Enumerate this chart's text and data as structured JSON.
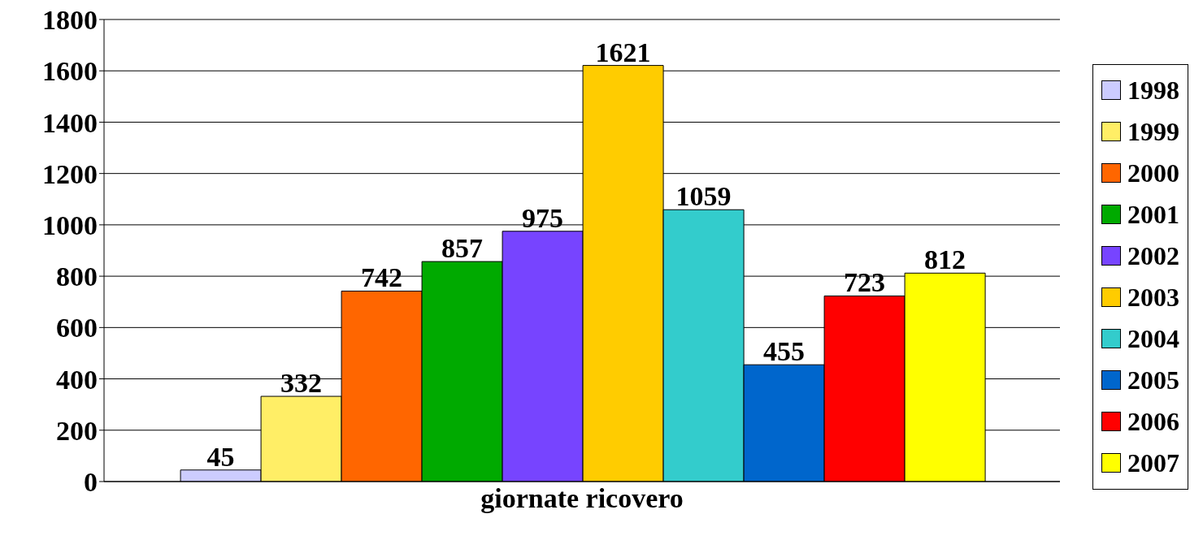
{
  "chart_data": {
    "type": "bar",
    "categories": [
      "giornate ricovero"
    ],
    "series": [
      {
        "name": "1998",
        "color": "#ccccff",
        "values": [
          45
        ]
      },
      {
        "name": "1999",
        "color": "#ffee66",
        "values": [
          332
        ]
      },
      {
        "name": "2000",
        "color": "#ff6600",
        "values": [
          742
        ]
      },
      {
        "name": "2001",
        "color": "#00aa00",
        "values": [
          857
        ]
      },
      {
        "name": "2002",
        "color": "#7744ff",
        "values": [
          975
        ]
      },
      {
        "name": "2003",
        "color": "#ffcc00",
        "values": [
          1621
        ]
      },
      {
        "name": "2004",
        "color": "#33cccc",
        "values": [
          1059
        ]
      },
      {
        "name": "2005",
        "color": "#0066cc",
        "values": [
          455
        ]
      },
      {
        "name": "2006",
        "color": "#ff0000",
        "values": [
          723
        ]
      },
      {
        "name": "2007",
        "color": "#ffff00",
        "values": [
          812
        ]
      }
    ],
    "ylim": [
      0,
      1800
    ],
    "yticks": [
      0,
      200,
      400,
      600,
      800,
      1000,
      1200,
      1400,
      1600,
      1800
    ],
    "grid": "y",
    "legend": "right",
    "data_labels": true
  }
}
